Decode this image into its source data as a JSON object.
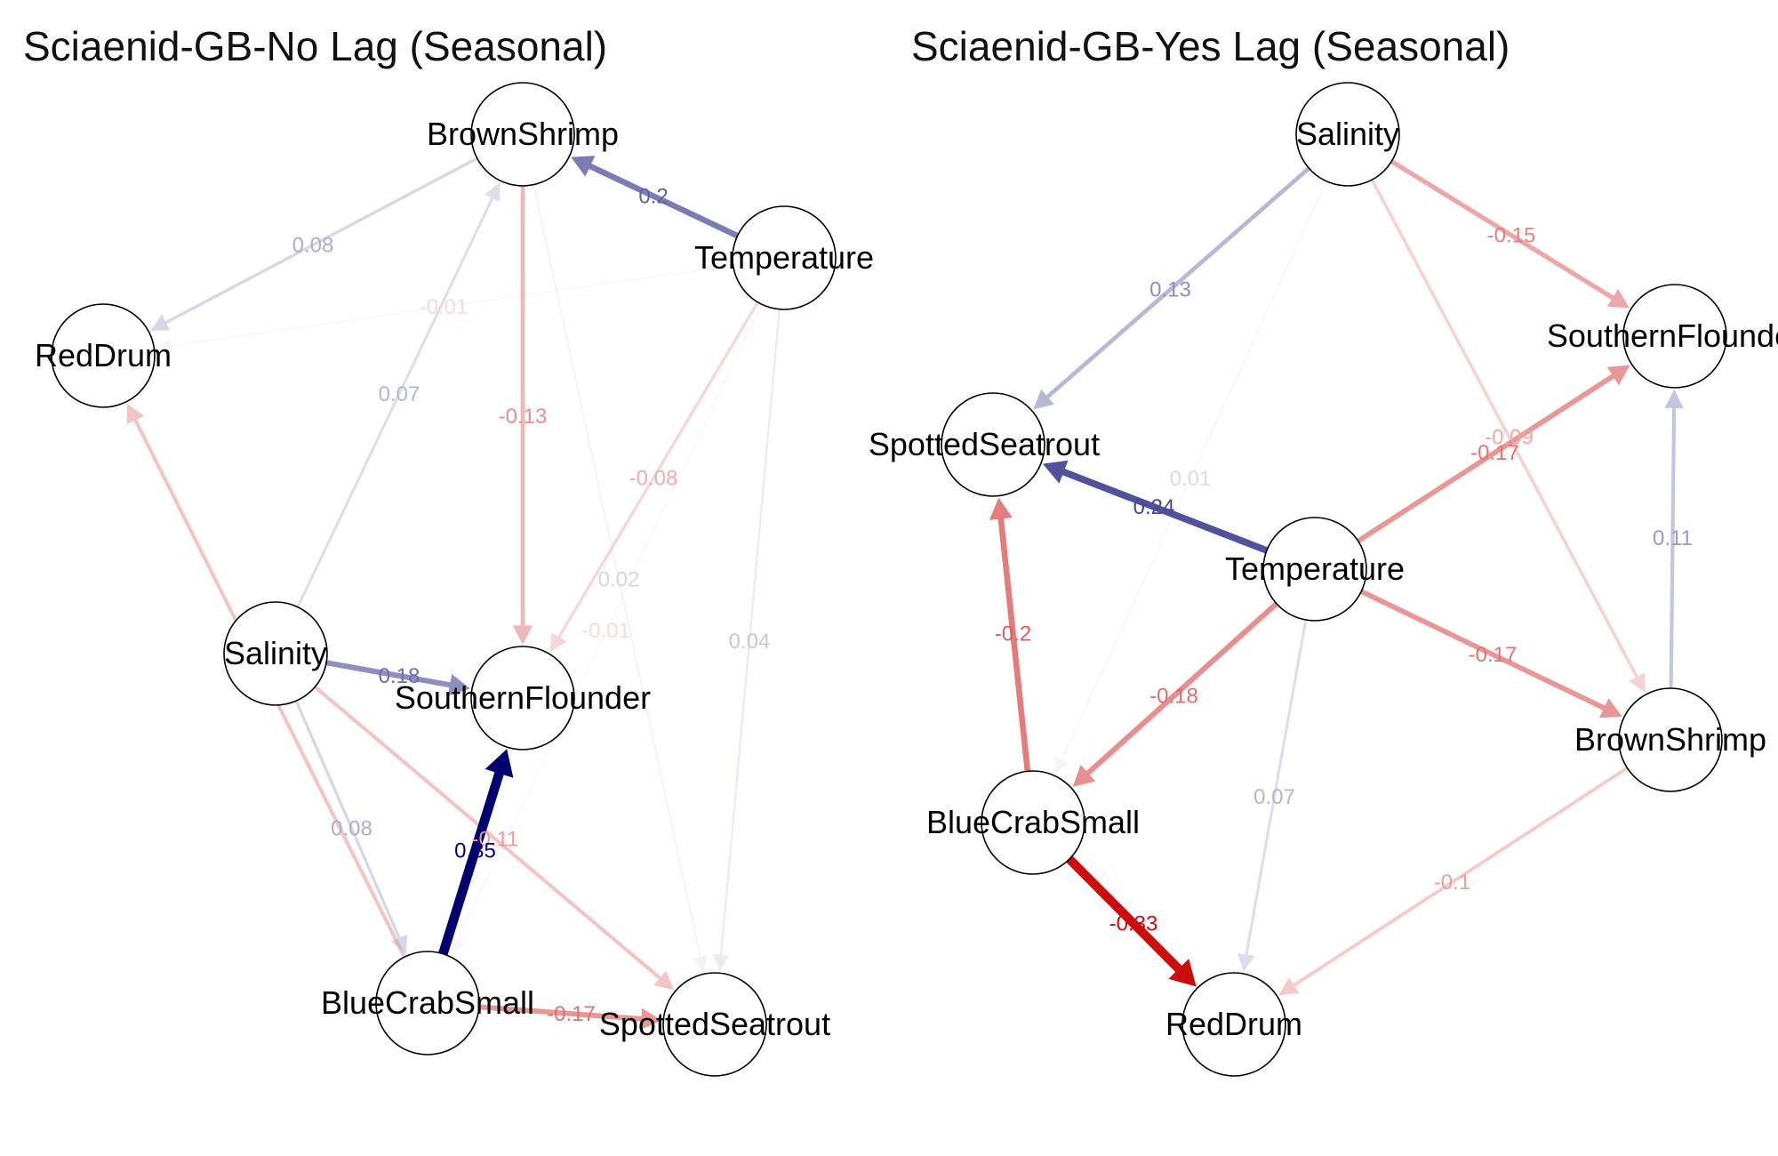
{
  "panels": [
    {
      "id": "no-lag",
      "title": "Sciaenid-GB-No Lag (Seasonal)",
      "nodes": [
        {
          "id": "BrownShrimp",
          "label": "BrownShrimp"
        },
        {
          "id": "Temperature",
          "label": "Temperature"
        },
        {
          "id": "RedDrum",
          "label": "RedDrum"
        },
        {
          "id": "Salinity",
          "label": "Salinity"
        },
        {
          "id": "SouthernFlounder",
          "label": "SouthernFlounder"
        },
        {
          "id": "BlueCrabSmall",
          "label": "BlueCrabSmall"
        },
        {
          "id": "SpottedSeatrout",
          "label": "SpottedSeatrout"
        }
      ],
      "edges": [
        {
          "from": "Temperature",
          "to": "BrownShrimp",
          "weight": 0.2,
          "label": "0.2"
        },
        {
          "from": "BrownShrimp",
          "to": "RedDrum",
          "weight": 0.08,
          "label": "0.08"
        },
        {
          "from": "Temperature",
          "to": "RedDrum",
          "weight": -0.01,
          "label": "-0.01"
        },
        {
          "from": "Salinity",
          "to": "BrownShrimp",
          "weight": 0.07,
          "label": "0.07"
        },
        {
          "from": "BrownShrimp",
          "to": "SouthernFlounder",
          "weight": -0.13,
          "label": "-0.13"
        },
        {
          "from": "Temperature",
          "to": "SouthernFlounder",
          "weight": -0.08,
          "label": "-0.08"
        },
        {
          "from": "BrownShrimp",
          "to": "SpottedSeatrout",
          "weight": 0.02,
          "label": "0.02"
        },
        {
          "from": "Temperature",
          "to": "BlueCrabSmall",
          "weight": -0.01,
          "label": "-0.01"
        },
        {
          "from": "Temperature",
          "to": "SpottedSeatrout",
          "weight": 0.04,
          "label": "0.04"
        },
        {
          "from": "BlueCrabSmall",
          "to": "RedDrum",
          "weight": -0.11,
          "label": "-0.11"
        },
        {
          "from": "Salinity",
          "to": "SouthernFlounder",
          "weight": 0.18,
          "label": "0.18"
        },
        {
          "from": "Salinity",
          "to": "BlueCrabSmall",
          "weight": 0.08,
          "label": "0.08"
        },
        {
          "from": "Salinity",
          "to": "SpottedSeatrout",
          "weight": -0.11,
          "label": "-0.11"
        },
        {
          "from": "BlueCrabSmall",
          "to": "SouthernFlounder",
          "weight": 0.35,
          "label": "0.35"
        },
        {
          "from": "BlueCrabSmall",
          "to": "SpottedSeatrout",
          "weight": -0.17,
          "label": "-0.17"
        }
      ]
    },
    {
      "id": "yes-lag",
      "title": "Sciaenid-GB-Yes Lag (Seasonal)",
      "nodes": [
        {
          "id": "Salinity",
          "label": "Salinity"
        },
        {
          "id": "SouthernFlounder",
          "label": "SouthernFlounder"
        },
        {
          "id": "SpottedSeatrout",
          "label": "SpottedSeatrout"
        },
        {
          "id": "Temperature",
          "label": "Temperature"
        },
        {
          "id": "BrownShrimp",
          "label": "BrownShrimp"
        },
        {
          "id": "BlueCrabSmall",
          "label": "BlueCrabSmall"
        },
        {
          "id": "RedDrum",
          "label": "RedDrum"
        }
      ],
      "edges": [
        {
          "from": "Salinity",
          "to": "SouthernFlounder",
          "weight": -0.15,
          "label": "-0.15"
        },
        {
          "from": "Salinity",
          "to": "SpottedSeatrout",
          "weight": 0.13,
          "label": "0.13"
        },
        {
          "from": "Salinity",
          "to": "BrownShrimp",
          "weight": -0.09,
          "label": "-0.09"
        },
        {
          "from": "Salinity",
          "to": "BlueCrabSmall",
          "weight": 0.01,
          "label": "0.01"
        },
        {
          "from": "Temperature",
          "to": "SpottedSeatrout",
          "weight": 0.24,
          "label": "0.24"
        },
        {
          "from": "Temperature",
          "to": "SouthernFlounder",
          "weight": -0.17,
          "label": "-0.17"
        },
        {
          "from": "BrownShrimp",
          "to": "SouthernFlounder",
          "weight": 0.11,
          "label": "0.11"
        },
        {
          "from": "BlueCrabSmall",
          "to": "SpottedSeatrout",
          "weight": -0.2,
          "label": "-0.2"
        },
        {
          "from": "Temperature",
          "to": "BrownShrimp",
          "weight": -0.17,
          "label": "-0.17"
        },
        {
          "from": "Temperature",
          "to": "BlueCrabSmall",
          "weight": -0.18,
          "label": "-0.18"
        },
        {
          "from": "Temperature",
          "to": "RedDrum",
          "weight": 0.07,
          "label": "0.07"
        },
        {
          "from": "BrownShrimp",
          "to": "RedDrum",
          "weight": -0.1,
          "label": "-0.1"
        },
        {
          "from": "BlueCrabSmall",
          "to": "RedDrum",
          "weight": -0.33,
          "label": "-0.33"
        }
      ]
    }
  ],
  "colors": {
    "positive": "#00006e",
    "negative": "#c80000",
    "node_fill": "#ffffff",
    "node_stroke": "#000000"
  }
}
